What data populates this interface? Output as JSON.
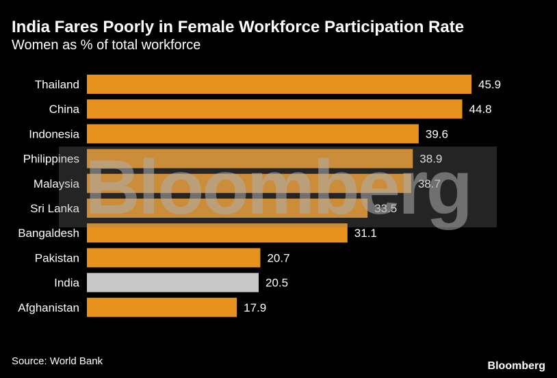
{
  "chart_data": {
    "type": "bar",
    "orientation": "horizontal",
    "title": "India Fares Poorly in Female Workforce Participation Rate",
    "subtitle": "Women as % of total workforce",
    "categories": [
      "Thailand",
      "China",
      "Indonesia",
      "Philippines",
      "Malaysia",
      "Sri Lanka",
      "Bangaldesh",
      "Pakistan",
      "India",
      "Afghanistan"
    ],
    "values": [
      45.9,
      44.8,
      39.6,
      38.9,
      38.7,
      33.5,
      31.1,
      20.7,
      20.5,
      17.9
    ],
    "highlight": "India",
    "xlim": [
      0,
      45.9
    ],
    "grid": false,
    "legend": "none",
    "bar_color": "#e8921e",
    "highlight_color": "#c8c8c8"
  },
  "source": "Source: World Bank",
  "watermark": "Bloomberg",
  "brand": "Bloomberg"
}
